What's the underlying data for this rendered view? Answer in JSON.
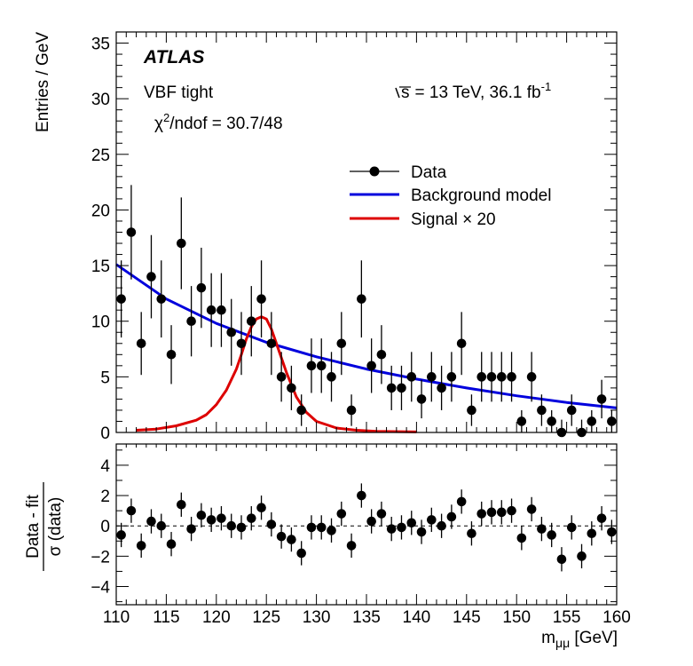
{
  "chart_data": {
    "type": "scatter",
    "experiment_label": "ATLAS",
    "category_label": "VBF tight",
    "energy_prefix": "s",
    "energy_value": "= 13 TeV, 36.1 fb",
    "energy_exponent": "-1",
    "chi2_label": "χ",
    "chi2_exponent": "2",
    "chi2_value": "/ndof = 30.7/48",
    "xlabel_main": "m",
    "xlabel_sub": "μμ",
    "xlabel_unit": " [GeV]",
    "ylabel_top": "Entries / GeV",
    "ylabel_bottom_num": "Data - fit",
    "ylabel_bottom_den": "σ (data)",
    "xlim": [
      110,
      160
    ],
    "ylim_top": [
      0,
      36
    ],
    "ylim_bottom": [
      -5.2,
      5.4
    ],
    "x_ticks": [
      110,
      115,
      120,
      125,
      130,
      135,
      140,
      145,
      150,
      155,
      160
    ],
    "y_ticks_top": [
      0,
      5,
      10,
      15,
      20,
      25,
      30,
      35
    ],
    "y_ticks_bottom": [
      -4,
      -2,
      0,
      2,
      4
    ],
    "legend": [
      {
        "label": "Data",
        "kind": "marker"
      },
      {
        "label": "Background model",
        "kind": "line",
        "color": "#0000dd"
      },
      {
        "label": "Signal × 20",
        "kind": "line",
        "color": "#dd0000"
      }
    ],
    "data": {
      "x": [
        110.5,
        111.5,
        112.5,
        113.5,
        114.5,
        115.5,
        116.5,
        117.5,
        118.5,
        119.5,
        120.5,
        121.5,
        122.5,
        123.5,
        124.5,
        125.5,
        126.5,
        127.5,
        128.5,
        129.5,
        130.5,
        131.5,
        132.5,
        133.5,
        134.5,
        135.5,
        136.5,
        137.5,
        138.5,
        139.5,
        140.5,
        141.5,
        142.5,
        143.5,
        144.5,
        145.5,
        146.5,
        147.5,
        148.5,
        149.5,
        150.5,
        151.5,
        152.5,
        153.5,
        154.5,
        155.5,
        156.5,
        157.5,
        158.5,
        159.5
      ],
      "y": [
        12,
        18,
        8,
        14,
        12,
        7,
        17,
        10,
        13,
        11,
        11,
        9,
        8,
        10,
        12,
        8,
        5,
        4,
        2,
        6,
        6,
        5,
        8,
        2,
        12,
        6,
        7,
        4,
        4,
        5,
        3,
        5,
        4,
        5,
        8,
        2,
        5,
        5,
        5,
        5,
        1,
        5,
        2,
        1,
        0,
        2,
        0,
        1,
        3,
        1
      ]
    },
    "background": {
      "x": [
        110,
        115,
        120,
        125,
        130,
        135,
        140,
        145,
        150,
        155,
        160
      ],
      "y": [
        15.1,
        12.0,
        9.8,
        8.1,
        6.8,
        5.7,
        4.8,
        4.0,
        3.3,
        2.7,
        2.2
      ]
    },
    "signal": {
      "x": [
        112,
        114,
        116,
        118,
        119,
        120,
        121,
        122,
        122.5,
        123,
        123.5,
        124,
        124.5,
        125,
        125.5,
        126,
        127,
        128,
        129,
        130,
        132,
        134,
        136,
        140
      ],
      "y": [
        0.2,
        0.3,
        0.6,
        1.1,
        1.6,
        2.5,
        3.8,
        5.7,
        7.0,
        8.4,
        9.5,
        10.2,
        10.4,
        10.2,
        9.3,
        8.0,
        5.4,
        3.2,
        1.8,
        1.0,
        0.4,
        0.2,
        0.1,
        0.05
      ]
    },
    "residuals": {
      "x": [
        110.5,
        111.5,
        112.5,
        113.5,
        114.5,
        115.5,
        116.5,
        117.5,
        118.5,
        119.5,
        120.5,
        121.5,
        122.5,
        123.5,
        124.5,
        125.5,
        126.5,
        127.5,
        128.5,
        129.5,
        130.5,
        131.5,
        132.5,
        133.5,
        134.5,
        135.5,
        136.5,
        137.5,
        138.5,
        139.5,
        140.5,
        141.5,
        142.5,
        143.5,
        144.5,
        145.5,
        146.5,
        147.5,
        148.5,
        149.5,
        150.5,
        151.5,
        152.5,
        153.5,
        154.5,
        155.5,
        156.5,
        157.5,
        158.5,
        159.5
      ],
      "y": [
        -0.6,
        1.0,
        -1.3,
        0.3,
        0.0,
        -1.2,
        1.4,
        -0.2,
        0.7,
        0.4,
        0.5,
        0.0,
        -0.1,
        0.5,
        1.2,
        0.1,
        -0.7,
        -0.9,
        -1.8,
        -0.1,
        -0.1,
        -0.3,
        0.8,
        -1.3,
        2.0,
        0.3,
        0.8,
        -0.2,
        -0.1,
        0.2,
        -0.4,
        0.4,
        0.0,
        0.6,
        1.6,
        -0.5,
        0.8,
        0.9,
        0.9,
        1.0,
        -0.8,
        1.1,
        -0.2,
        -0.6,
        -2.2,
        -0.1,
        -2.0,
        -0.5,
        0.5,
        -0.4
      ]
    }
  }
}
